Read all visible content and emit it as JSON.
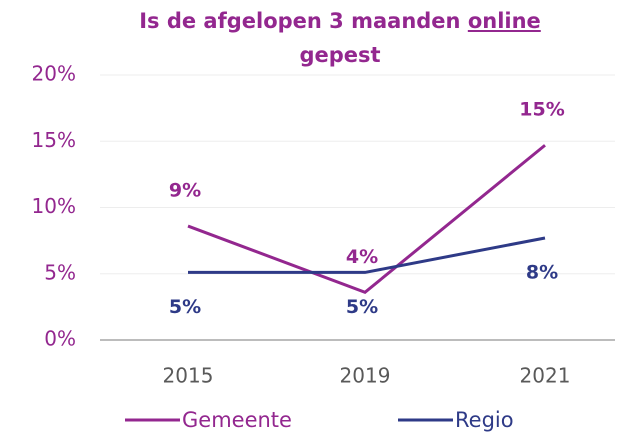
{
  "chart_data": {
    "type": "line",
    "title": [
      "Is de afgelopen 3 maanden",
      "online",
      "gepest"
    ],
    "categories": [
      "2015",
      "2019",
      "2021"
    ],
    "series": [
      {
        "name": "Gemeente",
        "color": "#93278f",
        "values": [
          8.6,
          3.6,
          14.7
        ],
        "value_labels": [
          "9%",
          "4%",
          "15%"
        ]
      },
      {
        "name": "Regio",
        "color": "#2e3a87",
        "values": [
          5.1,
          5.1,
          7.7
        ],
        "value_labels": [
          "5%",
          "5%",
          "8%"
        ]
      }
    ],
    "ylim": [
      0,
      20
    ],
    "yticks": [
      {
        "value": 0,
        "label": "0%"
      },
      {
        "value": 5,
        "label": "5%"
      },
      {
        "value": 10,
        "label": "10%"
      },
      {
        "value": 15,
        "label": "15%"
      },
      {
        "value": 20,
        "label": "20%"
      }
    ],
    "grid": true,
    "legend": "bottom"
  }
}
